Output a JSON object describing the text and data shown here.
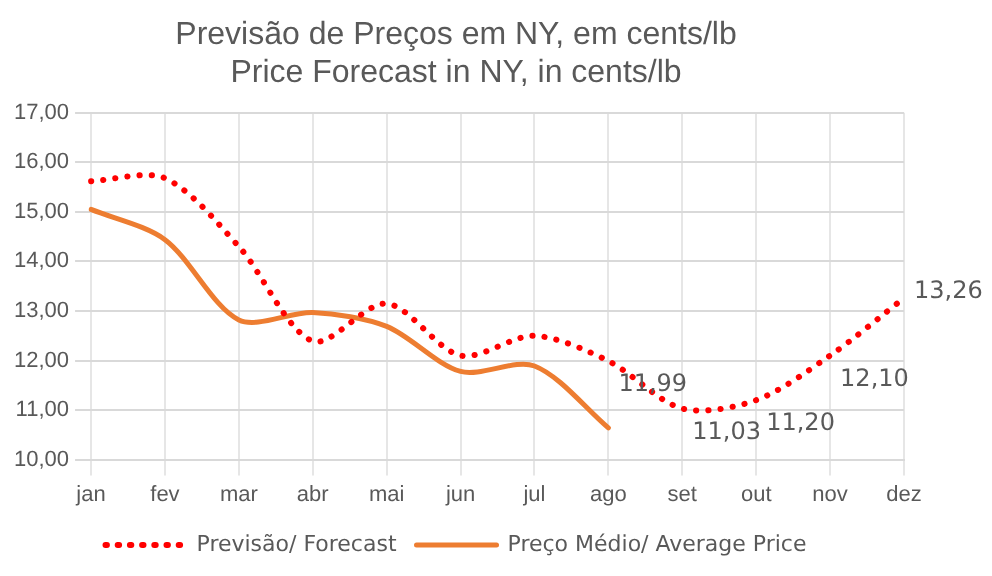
{
  "chart_data": {
    "type": "line",
    "title": "Previsão de Preços em NY, em cents/lb\nPrice Forecast in NY, in cents/lb",
    "categories": [
      "jan",
      "fev",
      "mar",
      "abr",
      "mai",
      "jun",
      "jul",
      "ago",
      "set",
      "out",
      "nov",
      "dez"
    ],
    "series": [
      {
        "name": "Previsão/ Forecast",
        "color": "#ff0000",
        "line_style": "dotted",
        "values": [
          15.62,
          15.68,
          14.3,
          12.39,
          13.15,
          12.1,
          12.5,
          11.99,
          11.03,
          11.2,
          12.1,
          13.26
        ],
        "value_labels": [
          null,
          null,
          null,
          null,
          null,
          null,
          null,
          "11,99",
          "11,03",
          "11,20",
          "12,10",
          "13,26"
        ]
      },
      {
        "name": "Preço Médio/ Average Price",
        "color": "#ed7d31",
        "line_style": "solid",
        "values": [
          15.05,
          14.44,
          12.82,
          12.97,
          12.69,
          11.78,
          11.89,
          10.64,
          null,
          null,
          null,
          null
        ]
      }
    ],
    "ylim": [
      10,
      17
    ],
    "yticks": [
      {
        "value": 10,
        "label": "10,00"
      },
      {
        "value": 11,
        "label": "11,00"
      },
      {
        "value": 12,
        "label": "12,00"
      },
      {
        "value": 13,
        "label": "13,00"
      },
      {
        "value": 14,
        "label": "14,00"
      },
      {
        "value": 15,
        "label": "15,00"
      },
      {
        "value": 16,
        "label": "16,00"
      },
      {
        "value": 17,
        "label": "17,00"
      }
    ],
    "grid": true,
    "legend": "bottom",
    "marker": "none"
  }
}
